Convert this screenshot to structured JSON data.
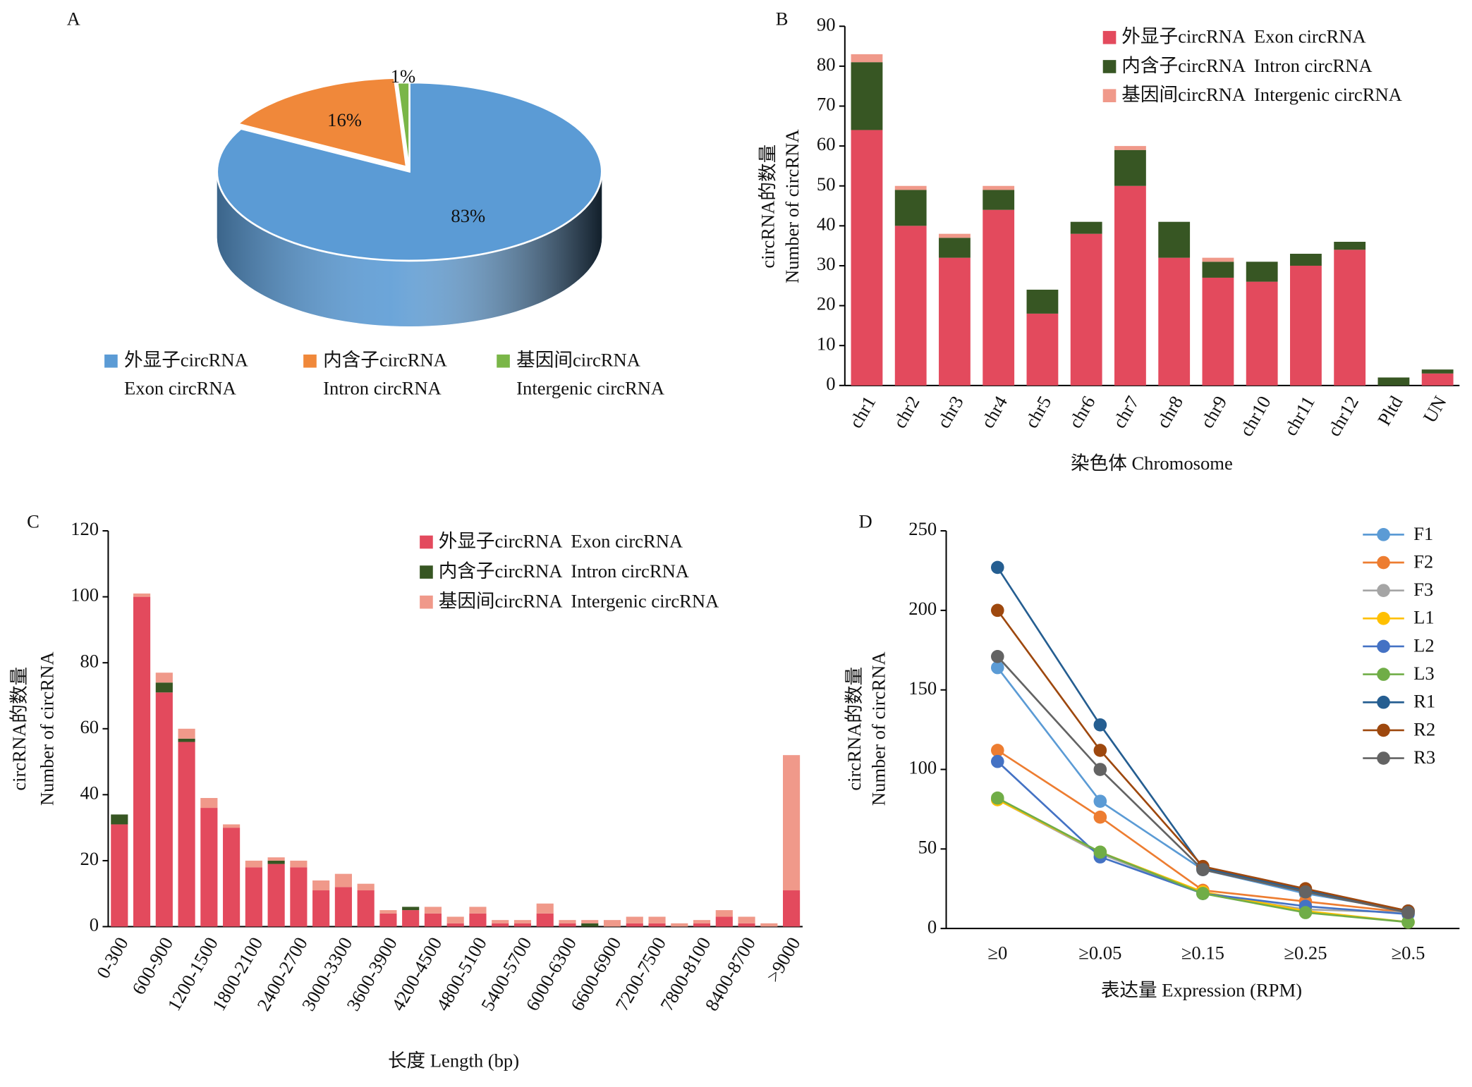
{
  "chart_data": [
    {
      "type": "pie",
      "panel": "A",
      "categories": [
        [
          "外显子circRNA",
          "Exon circRNA"
        ],
        [
          "内含子circRNA",
          "Intron circRNA"
        ],
        [
          "基因间circRNA",
          "Intergenic circRNA"
        ]
      ],
      "values": [
        83,
        16,
        1
      ],
      "value_labels": [
        "83%",
        "16%",
        "1%"
      ],
      "colors": [
        "#5b9bd5",
        "#f0883a",
        "#7ab648"
      ]
    },
    {
      "type": "stacked_bar",
      "panel": "B",
      "y_label": [
        "circRNA的数量",
        "Number of circRNA"
      ],
      "x_label": "染色体 Chromosome",
      "categories": [
        "chr1",
        "chr2",
        "chr3",
        "chr4",
        "chr5",
        "chr6",
        "chr7",
        "chr8",
        "chr9",
        "chr10",
        "chr11",
        "chr12",
        "Pltd",
        "UN"
      ],
      "series": [
        {
          "name": "外显子circRNA  Exon circRNA",
          "color": "#e34a5d",
          "values": [
            64,
            40,
            32,
            44,
            18,
            38,
            50,
            32,
            27,
            26,
            30,
            34,
            0,
            3
          ]
        },
        {
          "name": "内含子circRNA  Intron circRNA",
          "color": "#375623",
          "values": [
            17,
            9,
            5,
            5,
            6,
            3,
            9,
            9,
            4,
            5,
            3,
            2,
            2,
            1
          ]
        },
        {
          "name": "基因间circRNA  Intergenic circRNA",
          "color": "#f0998a",
          "values": [
            2,
            1,
            1,
            1,
            0,
            0,
            1,
            0,
            1,
            0,
            0,
            0,
            0,
            0
          ]
        }
      ],
      "ylim": [
        0,
        90
      ],
      "yticks": [
        0,
        10,
        20,
        30,
        40,
        50,
        60,
        70,
        80,
        90
      ]
    },
    {
      "type": "stacked_bar",
      "panel": "C",
      "y_label": [
        "circRNA的数量",
        "Number of circRNA"
      ],
      "x_label": "长度 Length (bp)",
      "categories": [
        "0-300",
        null,
        "600-900",
        null,
        "1200-1500",
        null,
        "1800-2100",
        null,
        "2400-2700",
        null,
        "3000-3300",
        null,
        "3600-3900",
        null,
        "4200-4500",
        null,
        "4800-5100",
        null,
        "5400-5700",
        null,
        "6000-6300",
        null,
        "6600-6900",
        null,
        "7200-7500",
        null,
        "7800-8100",
        null,
        "8400-8700",
        null,
        ">9000"
      ],
      "series": [
        {
          "name": "外显子circRNA  Exon circRNA",
          "color": "#e34a5d",
          "values": [
            31,
            100,
            71,
            56,
            36,
            30,
            18,
            19,
            18,
            11,
            12,
            11,
            4,
            5,
            4,
            1,
            4,
            1,
            1,
            4,
            1,
            0,
            0,
            1,
            1,
            0,
            1,
            3,
            1,
            0,
            11
          ]
        },
        {
          "name": "内含子circRNA  Intron circRNA",
          "color": "#375623",
          "values": [
            3,
            0,
            3,
            1,
            0,
            0,
            0,
            1,
            0,
            0,
            0,
            0,
            0,
            1,
            0,
            0,
            0,
            0,
            0,
            0,
            0,
            1,
            0,
            0,
            0,
            0,
            0,
            0,
            0,
            0,
            0
          ]
        },
        {
          "name": "基因间circRNA  Intergenic circRNA",
          "color": "#f0998a",
          "values": [
            0,
            1,
            3,
            3,
            3,
            1,
            2,
            1,
            2,
            3,
            4,
            2,
            1,
            0,
            2,
            2,
            2,
            1,
            1,
            3,
            1,
            1,
            2,
            2,
            2,
            1,
            1,
            2,
            2,
            1,
            41
          ]
        }
      ],
      "ylim": [
        0,
        120
      ],
      "yticks": [
        0,
        20,
        40,
        60,
        80,
        100,
        120
      ]
    },
    {
      "type": "line",
      "panel": "D",
      "y_label": [
        "circRNA的数量",
        "Number of circRNA"
      ],
      "x_label": "表达量 Expression (RPM)",
      "categories": [
        "≥0",
        "≥0.05",
        "≥0.15",
        "≥0.25",
        "≥0.5"
      ],
      "series": [
        {
          "name": "F1",
          "color": "#5b9bd5",
          "values": [
            164,
            80,
            37,
            22,
            11
          ]
        },
        {
          "name": "F2",
          "color": "#ed7d31",
          "values": [
            112,
            70,
            24,
            17,
            10
          ]
        },
        {
          "name": "F3",
          "color": "#a5a5a5",
          "values": [
            81,
            47,
            22,
            12,
            10
          ]
        },
        {
          "name": "L1",
          "color": "#ffc000",
          "values": [
            81,
            48,
            23,
            11,
            4
          ]
        },
        {
          "name": "L2",
          "color": "#4472c4",
          "values": [
            105,
            45,
            22,
            14,
            9
          ]
        },
        {
          "name": "L3",
          "color": "#70ad47",
          "values": [
            82,
            48,
            22,
            10,
            4
          ]
        },
        {
          "name": "R1",
          "color": "#255e91",
          "values": [
            227,
            128,
            38,
            24,
            11
          ]
        },
        {
          "name": "R2",
          "color": "#9e480e",
          "values": [
            200,
            112,
            39,
            25,
            11
          ]
        },
        {
          "name": "R3",
          "color": "#636363",
          "values": [
            171,
            100,
            37,
            23,
            10
          ]
        }
      ],
      "ylim": [
        0,
        250
      ],
      "yticks": [
        0,
        50,
        100,
        150,
        200,
        250
      ]
    }
  ]
}
